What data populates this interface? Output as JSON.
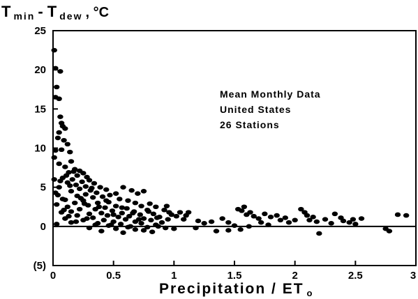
{
  "chart_data": {
    "type": "scatter",
    "ylabel": {
      "main": "T",
      "sub1": "min",
      "dash": " - T",
      "sub2": "dew",
      "unit": " , °C"
    },
    "xlabel": {
      "main": "Precipitation / ET",
      "sub": "o"
    },
    "xlim": [
      0,
      3
    ],
    "ylim": [
      -5,
      25
    ],
    "x_ticks": [
      0,
      0.5,
      1,
      1.5,
      2,
      2.5,
      3
    ],
    "x_tick_labels": [
      "0",
      "0.5",
      "1",
      "1.5",
      "2",
      "2.5",
      "3"
    ],
    "y_ticks": [
      -5,
      0,
      5,
      10,
      15,
      20,
      25
    ],
    "y_tick_labels": [
      "(5)",
      "0",
      "5",
      "10",
      "15",
      "20",
      "25"
    ],
    "zero_line": true,
    "grid": false,
    "annotation": [
      "Mean Monthly Data",
      "United States",
      "26 Stations"
    ],
    "points": [
      [
        0.01,
        22.5
      ],
      [
        0.02,
        20.2
      ],
      [
        0.03,
        17.8
      ],
      [
        0.02,
        16.5
      ],
      [
        0.06,
        19.8
      ],
      [
        0.05,
        16.3
      ],
      [
        0.06,
        14.0
      ],
      [
        0.07,
        13.2
      ],
      [
        0.08,
        12.8
      ],
      [
        0.1,
        12.5
      ],
      [
        0.05,
        12.0
      ],
      [
        0.04,
        11.3
      ],
      [
        0.09,
        11.0
      ],
      [
        0.12,
        10.5
      ],
      [
        0.07,
        9.8
      ],
      [
        0.02,
        9.7
      ],
      [
        0.14,
        9.5
      ],
      [
        0.01,
        8.8
      ],
      [
        0.15,
        8.3
      ],
      [
        0.05,
        8.0
      ],
      [
        0.1,
        7.6
      ],
      [
        0.18,
        7.3
      ],
      [
        0.22,
        7.1
      ],
      [
        0.13,
        6.9
      ],
      [
        0.25,
        6.8
      ],
      [
        0.2,
        6.5
      ],
      [
        0.28,
        6.3
      ],
      [
        0.08,
        6.2
      ],
      [
        0.16,
        6.0
      ],
      [
        0.01,
        6.0
      ],
      [
        0.3,
        5.9
      ],
      [
        0.24,
        5.7
      ],
      [
        0.12,
        5.6
      ],
      [
        0.34,
        5.5
      ],
      [
        0.19,
        5.3
      ],
      [
        0.27,
        5.1
      ],
      [
        0.05,
        5.0
      ],
      [
        0.39,
        5.0
      ],
      [
        0.22,
        4.8
      ],
      [
        0.31,
        4.6
      ],
      [
        0.44,
        4.7
      ],
      [
        0.15,
        4.5
      ],
      [
        0.02,
        4.3
      ],
      [
        0.36,
        4.3
      ],
      [
        0.27,
        4.1
      ],
      [
        0.52,
        4.2
      ],
      [
        0.58,
        5.0
      ],
      [
        0.65,
        4.6
      ],
      [
        0.75,
        4.5
      ],
      [
        0.7,
        4.2
      ],
      [
        0.47,
        4.0
      ],
      [
        0.2,
        3.9
      ],
      [
        0.41,
        3.8
      ],
      [
        0.33,
        3.7
      ],
      [
        0.55,
        3.5
      ],
      [
        0.1,
        3.4
      ],
      [
        0.25,
        3.3
      ],
      [
        0.62,
        3.3
      ],
      [
        0.46,
        3.1
      ],
      [
        0.37,
        3.0
      ],
      [
        0.18,
        3.0
      ],
      [
        0.68,
        3.0
      ],
      [
        0.8,
        2.9
      ],
      [
        0.03,
        2.8
      ],
      [
        0.29,
        2.7
      ],
      [
        0.52,
        2.6
      ],
      [
        0.73,
        2.6
      ],
      [
        0.12,
        2.5
      ],
      [
        0.43,
        2.4
      ],
      [
        0.85,
        2.5
      ],
      [
        0.61,
        2.3
      ],
      [
        0.35,
        2.2
      ],
      [
        0.22,
        2.2
      ],
      [
        0.78,
        2.1
      ],
      [
        0.92,
        2.1
      ],
      [
        0.49,
        2.0
      ],
      [
        0.67,
        1.9
      ],
      [
        0.15,
        1.9
      ],
      [
        0.96,
        1.8
      ],
      [
        0.07,
        1.8
      ],
      [
        0.57,
        1.7
      ],
      [
        0.4,
        1.7
      ],
      [
        1.05,
        1.8
      ],
      [
        1.12,
        1.8
      ],
      [
        0.3,
        1.6
      ],
      [
        0.83,
        1.6
      ],
      [
        0.72,
        1.5
      ],
      [
        0.98,
        1.5
      ],
      [
        0.45,
        1.4
      ],
      [
        0.2,
        1.4
      ],
      [
        0.63,
        1.3
      ],
      [
        1.02,
        1.3
      ],
      [
        0.88,
        1.2
      ],
      [
        0.54,
        1.2
      ],
      [
        0.33,
        1.1
      ],
      [
        0.75,
        1.0
      ],
      [
        0.1,
        1.0
      ],
      [
        0.95,
        0.9
      ],
      [
        0.6,
        0.9
      ],
      [
        0.42,
        0.8
      ],
      [
        0.81,
        0.8
      ],
      [
        0.25,
        0.8
      ],
      [
        0.68,
        0.6
      ],
      [
        0.5,
        0.6
      ],
      [
        0.9,
        0.5
      ],
      [
        0.15,
        0.5
      ],
      [
        0.37,
        0.4
      ],
      [
        0.73,
        0.4
      ],
      [
        0.56,
        0.3
      ],
      [
        0.85,
        0.2
      ],
      [
        0.03,
        0.3
      ],
      [
        0.46,
        0.1
      ],
      [
        0.64,
        0.0
      ],
      [
        0.78,
        -0.1
      ],
      [
        0.3,
        -0.2
      ],
      [
        0.93,
        -0.2
      ],
      [
        0.52,
        -0.3
      ],
      [
        0.68,
        -0.4
      ],
      [
        0.4,
        -0.6
      ],
      [
        0.82,
        -0.7
      ],
      [
        1.0,
        -0.3
      ],
      [
        0.58,
        -0.8
      ],
      [
        0.75,
        -0.5
      ],
      [
        0.87,
        0.0
      ],
      [
        0.48,
        0.2
      ],
      [
        0.62,
        -0.1
      ],
      [
        1.1,
        1.4
      ],
      [
        1.2,
        0.7
      ],
      [
        1.25,
        0.4
      ],
      [
        1.31,
        0.6
      ],
      [
        1.18,
        -0.2
      ],
      [
        1.4,
        1.0
      ],
      [
        1.45,
        0.5
      ],
      [
        1.5,
        0.1
      ],
      [
        1.53,
        2.2
      ],
      [
        1.56,
        2.0
      ],
      [
        1.58,
        2.5
      ],
      [
        1.6,
        1.5
      ],
      [
        1.63,
        1.8
      ],
      [
        1.66,
        1.3
      ],
      [
        1.7,
        1.0
      ],
      [
        1.72,
        0.5
      ],
      [
        1.75,
        1.6
      ],
      [
        1.8,
        1.2
      ],
      [
        1.85,
        1.4
      ],
      [
        1.88,
        0.8
      ],
      [
        1.92,
        1.1
      ],
      [
        1.45,
        -0.5
      ],
      [
        1.55,
        -0.4
      ],
      [
        1.35,
        -0.6
      ],
      [
        1.62,
        0.0
      ],
      [
        1.78,
        0.2
      ],
      [
        2.05,
        2.2
      ],
      [
        2.08,
        1.8
      ],
      [
        2.1,
        1.4
      ],
      [
        2.12,
        0.8
      ],
      [
        2.15,
        1.2
      ],
      [
        2.18,
        0.6
      ],
      [
        2.2,
        -0.9
      ],
      [
        2.25,
        0.9
      ],
      [
        2.3,
        0.4
      ],
      [
        2.33,
        1.6
      ],
      [
        2.38,
        1.1
      ],
      [
        2.4,
        0.7
      ],
      [
        2.45,
        0.5
      ],
      [
        2.48,
        0.9
      ],
      [
        2.5,
        0.3
      ],
      [
        2.55,
        1.0
      ],
      [
        2.75,
        -0.3
      ],
      [
        2.78,
        -0.6
      ],
      [
        2.85,
        1.5
      ],
      [
        2.92,
        1.4
      ],
      [
        2.0,
        0.8
      ],
      [
        1.95,
        0.5
      ],
      [
        0.04,
        4.0
      ],
      [
        0.08,
        3.5
      ],
      [
        0.11,
        6.5
      ],
      [
        0.14,
        5.2
      ],
      [
        0.17,
        7.0
      ],
      [
        0.06,
        5.8
      ],
      [
        0.23,
        3.6
      ],
      [
        0.26,
        2.9
      ],
      [
        0.32,
        4.9
      ],
      [
        0.38,
        2.5
      ],
      [
        0.44,
        3.3
      ],
      [
        0.5,
        1.5
      ],
      [
        0.57,
        2.4
      ],
      [
        0.66,
        1.7
      ],
      [
        0.71,
        0.9
      ],
      [
        0.79,
        1.9
      ],
      [
        0.86,
        1.1
      ],
      [
        0.94,
        2.6
      ],
      [
        1.08,
        0.9
      ],
      [
        0.09,
        2.1
      ],
      [
        0.13,
        1.3
      ],
      [
        0.19,
        0.6
      ],
      [
        0.28,
        1.0
      ],
      [
        0.35,
        0.2
      ]
    ]
  }
}
